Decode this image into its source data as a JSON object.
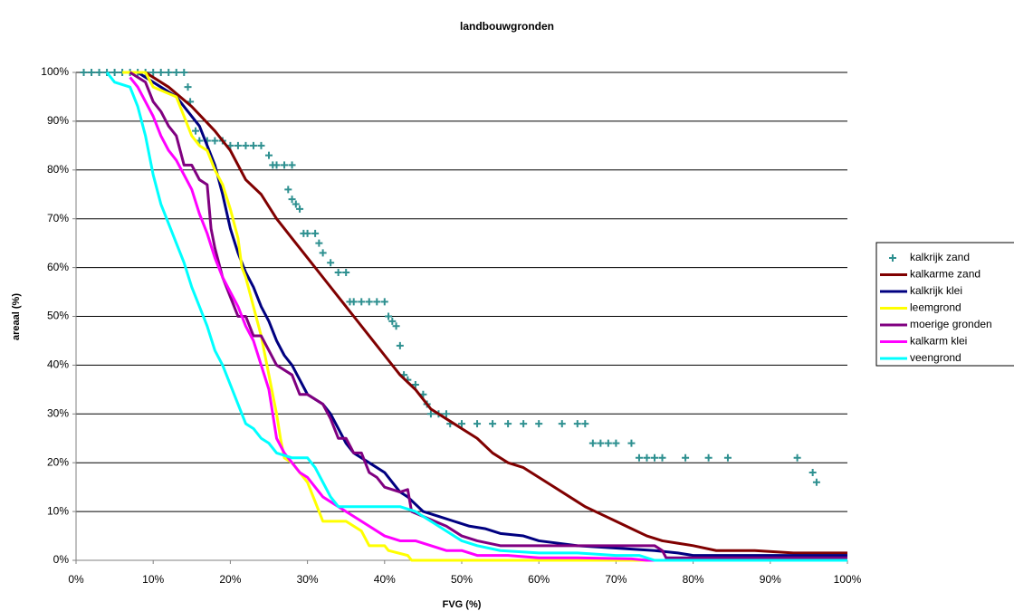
{
  "chart_data": {
    "type": "line",
    "title": "landbouwgronden",
    "x_label": "FVG (%)",
    "y_label": "areaal (%)",
    "xlim": [
      0,
      100
    ],
    "ylim": [
      0,
      100
    ],
    "xticks": [
      {
        "value": 0,
        "label": "0%"
      },
      {
        "value": 10,
        "label": "10%"
      },
      {
        "value": 20,
        "label": "20%"
      },
      {
        "value": 30,
        "label": "30%"
      },
      {
        "value": 40,
        "label": "40%"
      },
      {
        "value": 50,
        "label": "50%"
      },
      {
        "value": 60,
        "label": "60%"
      },
      {
        "value": 70,
        "label": "70%"
      },
      {
        "value": 80,
        "label": "80%"
      },
      {
        "value": 90,
        "label": "90%"
      },
      {
        "value": 100,
        "label": "100%"
      }
    ],
    "yticks": [
      {
        "value": 0,
        "label": "0%"
      },
      {
        "value": 10,
        "label": "10%"
      },
      {
        "value": 20,
        "label": "20%"
      },
      {
        "value": 30,
        "label": "30%"
      },
      {
        "value": 40,
        "label": "40%"
      },
      {
        "value": 50,
        "label": "50%"
      },
      {
        "value": 60,
        "label": "60%"
      },
      {
        "value": 70,
        "label": "70%"
      },
      {
        "value": 80,
        "label": "80%"
      },
      {
        "value": 90,
        "label": "90%"
      },
      {
        "value": 100,
        "label": "100%"
      }
    ],
    "grid": true,
    "legend": "right",
    "series": [
      {
        "name": "kalkrijk zand",
        "color": "#2e9090",
        "mode": "markers",
        "x": [
          1,
          2,
          3,
          4,
          5,
          6,
          7,
          8,
          9,
          10,
          11,
          12,
          13,
          14,
          14.5,
          14.8,
          15.5,
          16,
          17,
          18,
          19,
          20,
          21,
          22,
          23,
          24,
          25,
          25.5,
          26,
          27,
          28,
          27.5,
          28,
          28.5,
          29,
          29.5,
          30,
          31,
          31.5,
          32,
          33,
          34,
          35,
          35.5,
          36,
          37,
          38,
          39,
          40,
          40.5,
          41,
          41.5,
          42,
          42.5,
          43,
          44,
          45,
          45.5,
          46,
          47,
          48,
          48.5,
          50,
          52,
          54,
          56,
          58,
          60,
          63,
          65,
          66,
          67,
          68,
          69,
          70,
          72,
          73,
          74,
          75,
          76,
          79,
          82,
          84.5,
          93.5,
          95.5,
          96
        ],
        "values": [
          100,
          100,
          100,
          100,
          100,
          100,
          100,
          100,
          100,
          100,
          100,
          100,
          100,
          100,
          97,
          94,
          88,
          86,
          86,
          86,
          86,
          85,
          85,
          85,
          85,
          85,
          83,
          81,
          81,
          81,
          81,
          76,
          74,
          73,
          72,
          67,
          67,
          67,
          65,
          63,
          61,
          59,
          59,
          53,
          53,
          53,
          53,
          53,
          53,
          50,
          49,
          48,
          44,
          38,
          37,
          36,
          34,
          32,
          30,
          30,
          30,
          28,
          28,
          28,
          28,
          28,
          28,
          28,
          28,
          28,
          28,
          24,
          24,
          24,
          24,
          24,
          21,
          21,
          21,
          21,
          21,
          21,
          21,
          21,
          18,
          16
        ]
      },
      {
        "name": "kalkarme zand",
        "color": "#800000",
        "mode": "lines",
        "x": [
          9,
          12,
          15,
          18,
          20,
          22,
          24,
          26,
          28,
          30,
          32,
          34,
          36,
          38,
          40,
          42,
          44,
          46,
          48,
          50,
          52,
          54,
          56,
          58,
          60,
          62,
          64,
          66,
          68,
          70,
          72,
          74,
          76,
          78,
          80,
          83,
          88,
          93,
          100
        ],
        "values": [
          100,
          97,
          93,
          88,
          84,
          78,
          75,
          70,
          66,
          62,
          58,
          54,
          50,
          46,
          42,
          38,
          35,
          31,
          29,
          27,
          25,
          22,
          20,
          19,
          17,
          15,
          13,
          11,
          9.5,
          8,
          6.5,
          5,
          4,
          3.5,
          3,
          2,
          2,
          1.5,
          1.5
        ]
      },
      {
        "name": "kalkrijk klei",
        "color": "#000080",
        "mode": "lines",
        "x": [
          8,
          11,
          13,
          15,
          16,
          17,
          18,
          19,
          20,
          21,
          22,
          23,
          24,
          25,
          26,
          27,
          28,
          29,
          30,
          32,
          33,
          34,
          35,
          36,
          38,
          40,
          41,
          42,
          43,
          45,
          47,
          49,
          51,
          53,
          55,
          58,
          60,
          65,
          70,
          75,
          78,
          80,
          100
        ],
        "values": [
          100,
          97,
          95,
          91,
          89,
          85,
          81,
          75,
          68,
          63,
          59,
          56,
          52,
          49,
          45,
          42,
          40,
          37,
          34,
          32,
          30,
          27,
          24,
          22,
          20,
          18,
          16,
          14,
          13,
          10,
          9,
          8,
          7,
          6.5,
          5.5,
          5,
          4,
          3,
          2.5,
          2,
          1.5,
          1,
          1
        ]
      },
      {
        "name": "leemgrond",
        "color": "#ffff00",
        "mode": "lines",
        "x": [
          6,
          9,
          10,
          13,
          14,
          15,
          16,
          17,
          18,
          19,
          20,
          21,
          21.5,
          22,
          23,
          24,
          25,
          26,
          26.5,
          27,
          28,
          30,
          31,
          32,
          35,
          37,
          38,
          40,
          40.5,
          43,
          43.5,
          60,
          100
        ],
        "values": [
          100,
          100,
          97,
          95,
          91,
          87,
          85,
          84,
          80,
          77,
          72,
          66,
          60,
          58,
          52,
          46,
          38,
          30,
          25,
          21,
          20,
          16,
          12,
          8,
          8,
          6,
          3,
          3,
          2,
          1,
          0,
          0,
          0
        ]
      },
      {
        "name": "moerige gronden",
        "color": "#800080",
        "mode": "lines",
        "x": [
          7,
          9,
          10,
          11,
          12,
          13,
          14,
          15,
          16,
          17,
          17.5,
          18,
          19,
          20,
          21,
          22,
          23,
          24,
          25,
          26,
          28,
          29,
          30,
          32,
          33,
          34,
          35,
          36,
          37,
          38,
          39,
          40,
          42,
          43,
          43.5,
          45,
          48,
          50,
          52,
          55,
          60,
          67,
          70,
          75,
          76,
          76.5,
          100
        ],
        "values": [
          100,
          98,
          94,
          92,
          89,
          87,
          81,
          81,
          78,
          77,
          68,
          64,
          58,
          54,
          50,
          50,
          46,
          46,
          43,
          40,
          38,
          34,
          34,
          32,
          29,
          25,
          25,
          22,
          22,
          18,
          17,
          15,
          14,
          14.5,
          10,
          9,
          7,
          5,
          4,
          3,
          3,
          3,
          3,
          3,
          2,
          0.5,
          0.5
        ]
      },
      {
        "name": "kalkarm klei",
        "color": "#ff00ff",
        "mode": "lines",
        "x": [
          7,
          8,
          9,
          10,
          11,
          12,
          13,
          14,
          15,
          16,
          17,
          18,
          19,
          20,
          21,
          22,
          23,
          24,
          25,
          25.5,
          26,
          27,
          28,
          29,
          30,
          31,
          32,
          34,
          36,
          38,
          40,
          42,
          44,
          46,
          48,
          50,
          52,
          56,
          60,
          65,
          72,
          74,
          100
        ],
        "values": [
          99,
          97,
          94,
          91,
          87,
          84,
          82,
          79,
          76,
          71,
          67,
          62,
          58,
          55,
          52,
          48,
          45,
          40,
          35,
          30,
          25,
          22,
          20,
          18,
          17,
          15,
          13,
          11,
          9,
          7,
          5,
          4,
          4,
          3,
          2,
          2,
          1,
          1,
          0.5,
          0.5,
          0.3,
          0,
          0
        ]
      },
      {
        "name": "veengrond",
        "color": "#00ffff",
        "mode": "lines",
        "x": [
          4,
          5,
          7,
          8,
          9,
          10,
          11,
          12,
          13,
          14,
          15,
          16,
          17,
          18,
          19,
          20,
          21,
          22,
          23,
          24,
          25,
          26,
          28,
          30,
          31,
          32,
          33,
          34,
          36,
          38,
          40,
          42,
          44,
          46,
          48,
          50,
          52,
          55,
          60,
          65,
          70,
          73,
          75,
          100
        ],
        "values": [
          100,
          98,
          97,
          93,
          87,
          79,
          73,
          69,
          65,
          61,
          56,
          52,
          48,
          43,
          40,
          36,
          32,
          28,
          27,
          25,
          24,
          22,
          21,
          21,
          19,
          16,
          13,
          11,
          11,
          11,
          11,
          11,
          10,
          8,
          6,
          4,
          3,
          2,
          1.5,
          1.5,
          1,
          1,
          0,
          0
        ]
      }
    ]
  }
}
